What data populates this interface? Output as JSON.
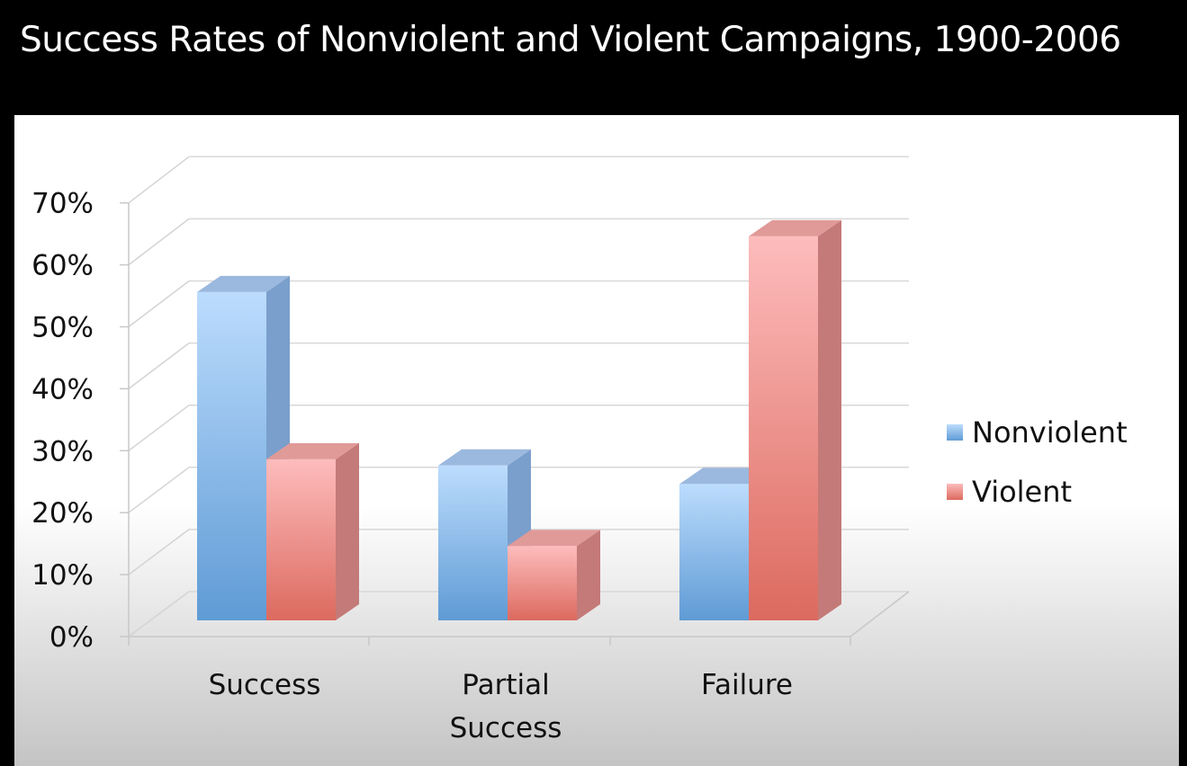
{
  "chart_data": {
    "type": "bar",
    "title": "Success Rates of Nonviolent and Violent Campaigns, 1900-2006",
    "categories": [
      "Success",
      "Partial Success",
      "Failure"
    ],
    "category_lines": [
      [
        "Success"
      ],
      [
        "Partial",
        "Success"
      ],
      [
        "Failure"
      ]
    ],
    "series": [
      {
        "name": "Nonviolent",
        "values": [
          53,
          25,
          22
        ],
        "color": "#8fbdf0"
      },
      {
        "name": "Violent",
        "values": [
          26,
          12,
          62
        ],
        "color": "#f49a96"
      }
    ],
    "yticks": [
      "0%",
      "10%",
      "20%",
      "30%",
      "40%",
      "50%",
      "60%",
      "70%"
    ],
    "ylim": [
      0,
      70
    ],
    "xlabel": "",
    "ylabel": "",
    "legend": "right",
    "grid": true,
    "style": "3d-clustered-column"
  }
}
